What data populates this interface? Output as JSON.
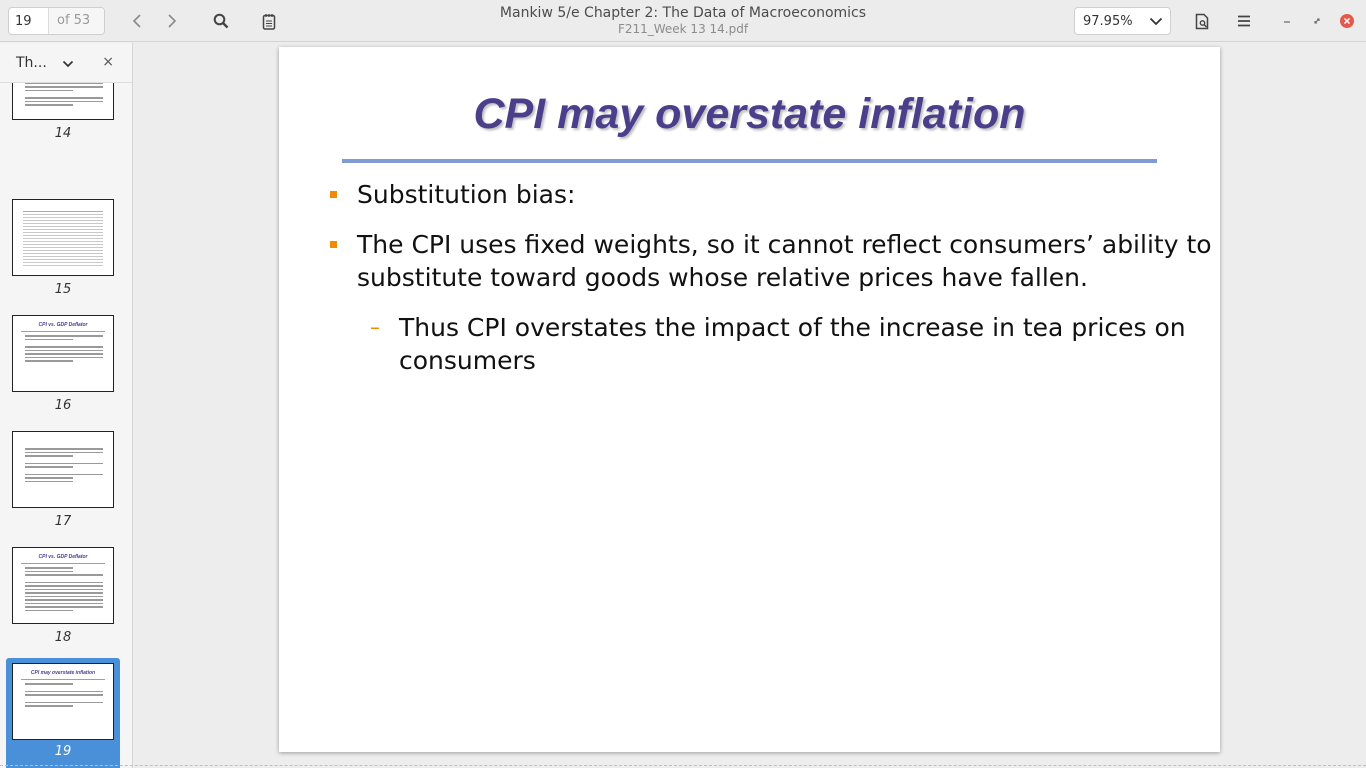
{
  "header": {
    "page_number": "19",
    "page_of": "of 53",
    "title": "Mankiw 5/e Chapter 2:  The Data of Macroeconomics",
    "subtitle": "F211_Week  13 14.pdf",
    "zoom": "97.95%",
    "icons": {
      "back": "chevron-left-icon",
      "forward": "chevron-right-icon",
      "search": "search-icon",
      "annotate": "notepad-icon",
      "doc_props": "document-icon",
      "menu": "hamburger-icon",
      "minimize": "minimize-icon",
      "restore": "restore-icon",
      "close": "close-icon"
    },
    "close_color": "#e25a4b"
  },
  "sidebar": {
    "label": "Th...",
    "close_glyph": "×",
    "thumbnails": [
      {
        "page": "14",
        "title": "",
        "selected": false
      },
      {
        "page": "15",
        "title": "",
        "selected": false
      },
      {
        "page": "16",
        "title": "CPI vs. GDP Deflator",
        "selected": false
      },
      {
        "page": "17",
        "title": "",
        "selected": false
      },
      {
        "page": "18",
        "title": "CPI vs. GDP Deflator",
        "selected": false
      },
      {
        "page": "19",
        "title": "CPI may overstate inflation",
        "selected": true
      }
    ],
    "selected_color": "#4a90d9"
  },
  "slide": {
    "title": "CPI may overstate inflation",
    "bullets": [
      {
        "level": 1,
        "text": "Substitution bias:"
      },
      {
        "level": 1,
        "line1": "The CPI uses fixed weights, so it cannot reflect consumers’ ability to",
        "line2": "substitute toward goods whose relative prices have fallen."
      },
      {
        "level": 2,
        "line1": "Thus CPI overstates the impact of the increase in tea prices on",
        "line2": "consumers"
      }
    ],
    "title_color": "#4b3e8a",
    "rule_color": "#7f9bd2",
    "bullet_color": "#f08c00"
  }
}
